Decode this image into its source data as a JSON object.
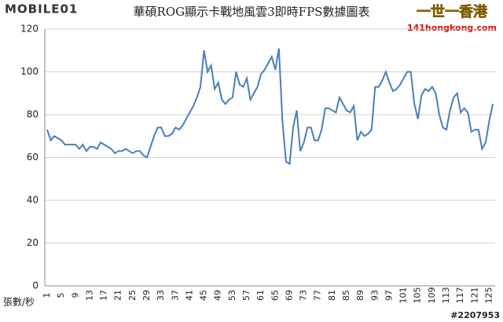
{
  "chart_data": {
    "type": "line",
    "title": "華碩ROG顯示卡戰地風雲3即時FPS數據圖表",
    "x_label": "張數/秒",
    "categories": [
      1,
      null,
      null,
      null,
      5,
      null,
      null,
      null,
      9,
      null,
      null,
      null,
      13,
      null,
      null,
      null,
      17,
      null,
      null,
      null,
      21,
      null,
      null,
      null,
      25,
      null,
      null,
      null,
      29,
      null,
      null,
      null,
      33,
      null,
      null,
      null,
      37,
      null,
      null,
      null,
      41,
      null,
      null,
      null,
      45,
      null,
      null,
      null,
      49,
      null,
      null,
      null,
      53,
      null,
      null,
      null,
      57,
      null,
      null,
      null,
      61,
      null,
      null,
      null,
      65,
      null,
      null,
      null,
      69,
      null,
      null,
      null,
      73,
      null,
      null,
      null,
      77,
      null,
      null,
      null,
      81,
      null,
      null,
      null,
      85,
      null,
      null,
      null,
      89,
      null,
      null,
      null,
      93,
      null,
      null,
      null,
      97,
      null,
      null,
      null,
      101,
      null,
      null,
      null,
      105,
      null,
      null,
      null,
      109,
      null,
      null,
      null,
      113,
      null,
      null,
      null,
      117,
      null,
      null,
      null,
      121,
      null,
      null,
      null,
      125,
      null
    ],
    "series": [
      {
        "name": "FPS",
        "color": "#4a7ebb",
        "values": [
          73,
          68,
          70,
          69,
          68,
          66,
          66,
          66,
          66,
          64,
          66,
          63,
          65,
          65,
          64,
          67,
          66,
          65,
          64,
          62,
          63,
          63,
          64,
          63,
          62,
          63,
          63,
          61,
          60,
          65,
          70,
          74,
          74,
          70,
          70,
          71,
          74,
          73,
          75,
          78,
          81,
          84,
          88,
          93,
          110,
          100,
          103,
          92,
          95,
          87,
          85,
          87,
          88,
          100,
          94,
          93,
          97,
          87,
          90,
          93,
          99,
          101,
          104,
          107,
          101,
          111,
          77,
          58,
          57,
          74,
          82,
          63,
          67,
          74,
          74,
          68,
          68,
          73,
          83,
          83,
          82,
          81,
          88,
          85,
          82,
          81,
          84,
          68,
          72,
          70,
          71,
          73,
          93,
          93,
          96,
          100,
          95,
          91,
          92,
          94,
          97,
          100,
          100,
          85,
          78,
          89,
          92,
          91,
          93,
          90,
          80,
          74,
          73,
          82,
          88,
          90,
          81,
          83,
          81,
          72,
          73,
          73,
          64,
          67,
          77,
          85
        ]
      }
    ],
    "ylim": [
      0,
      120
    ],
    "yticks": [
      0,
      20,
      40,
      60,
      80,
      100,
      120
    ],
    "grid": true
  },
  "watermarks": {
    "left_logo": "MOBILE01",
    "right_logo": "一世一香港",
    "right_url": "141hongkong.com",
    "id": "#2207953"
  }
}
